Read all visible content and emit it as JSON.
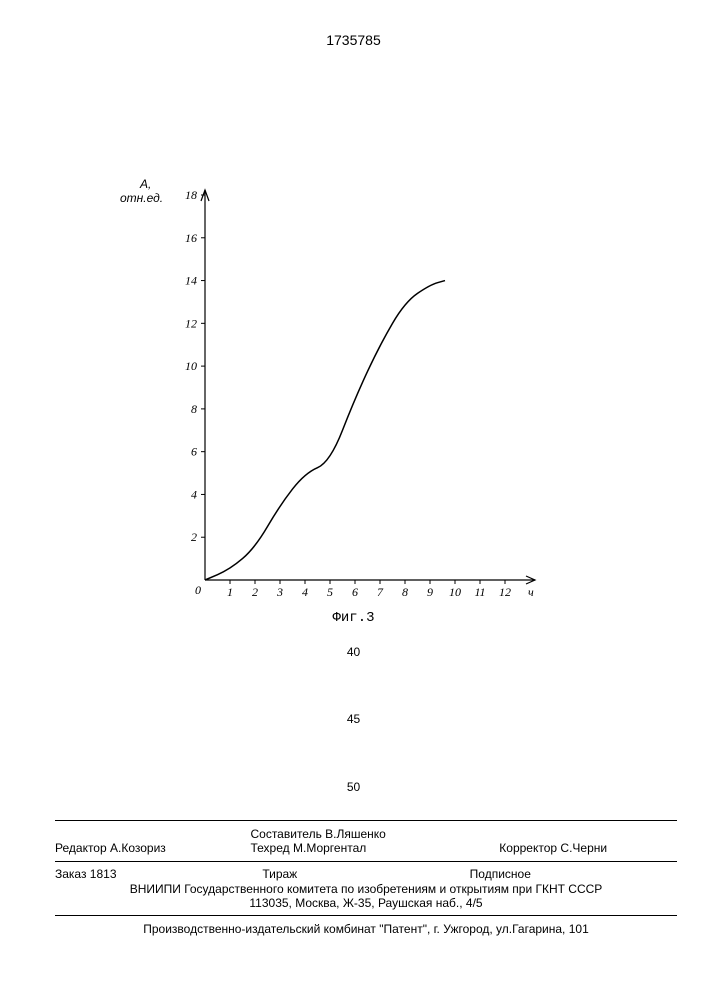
{
  "document_number": "1735785",
  "chart": {
    "type": "line",
    "y_axis_label_top": "A,",
    "y_axis_label_bottom": "отн.ед.",
    "x_axis_label": "ч",
    "xlim": [
      0,
      13
    ],
    "ylim": [
      0,
      18
    ],
    "x_ticks": [
      0,
      1,
      2,
      3,
      4,
      5,
      6,
      7,
      8,
      9,
      10,
      11,
      12
    ],
    "y_ticks": [
      2,
      4,
      6,
      8,
      10,
      12,
      14,
      16,
      18
    ],
    "points_x": [
      0,
      1,
      2,
      3,
      4,
      5,
      6,
      7,
      8,
      9,
      9.6
    ],
    "points_y": [
      0,
      0.5,
      1.5,
      3.5,
      5.0,
      5.5,
      8.5,
      11.0,
      13.0,
      13.8,
      14.0
    ],
    "line_color": "#000000",
    "line_width": 1.5,
    "axis_color": "#000000",
    "background_color": "#ffffff",
    "tick_fontsize": 12,
    "tick_font": "cursive"
  },
  "figure_label": "Фиг.3",
  "page_markers": [
    "40",
    "45",
    "50"
  ],
  "credits": {
    "compiler": "Составитель В.Ляшенко",
    "editor_label": "Редактор",
    "editor": "А.Козориз",
    "techred_label": "Техред",
    "techred": "М.Моргентал",
    "corrector_label": "Корректор",
    "corrector": "С.Черни"
  },
  "order_row": {
    "order": "Заказ 1813",
    "tirage": "Тираж",
    "sub": "Подписное"
  },
  "institution_line1": "ВНИИПИ Государственного комитета по изобретениям и открытиям при ГКНТ СССР",
  "institution_line2": "113035, Москва, Ж-35, Раушская наб., 4/5",
  "print_line": "Производственно-издательский комбинат \"Патент\", г. Ужгород, ул.Гагарина, 101"
}
